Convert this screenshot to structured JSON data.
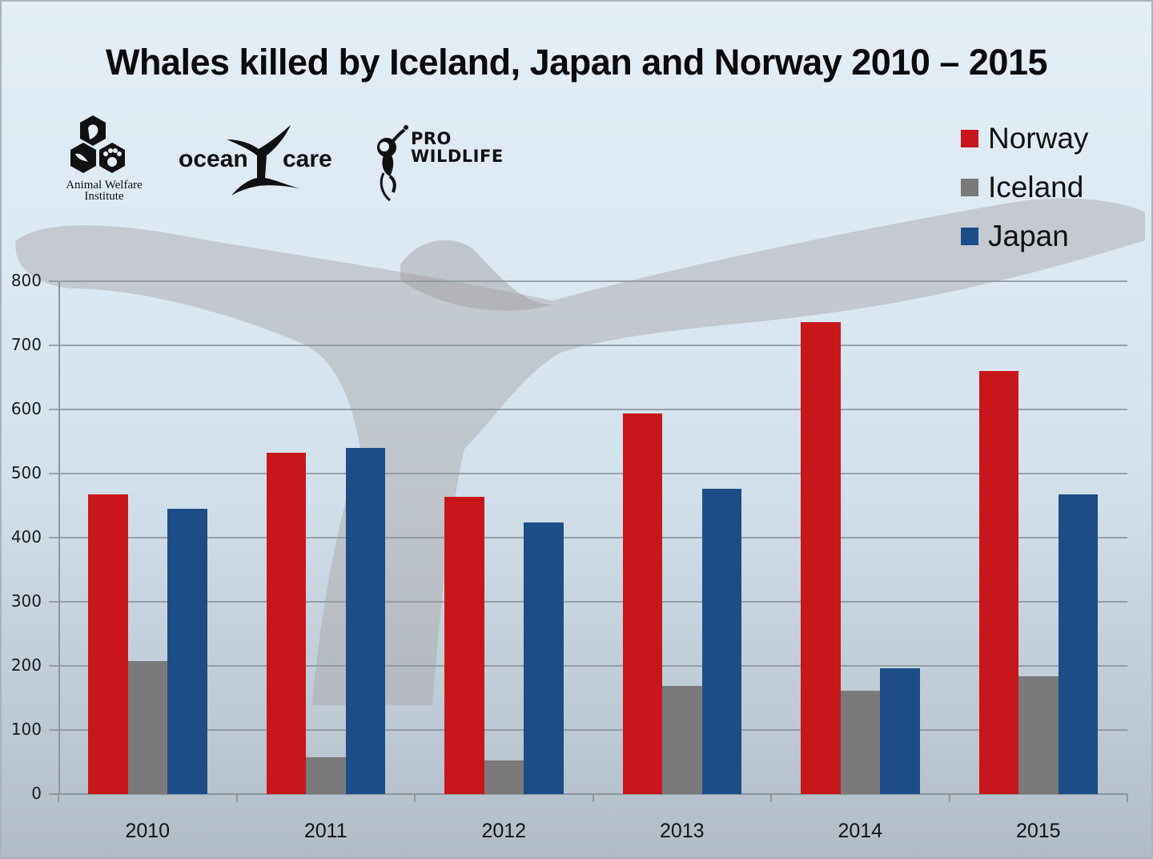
{
  "title": "Whales killed by Iceland, Japan and Norway 2010 – 2015",
  "logos": {
    "awi": {
      "caption_line1": "Animal Welfare",
      "caption_line2": "Institute"
    },
    "oceancare": {
      "left_word": "ocean",
      "right_word": "care"
    },
    "prowildlife": {
      "line1": "PRO",
      "line2": "WILDLIFE"
    }
  },
  "legend": [
    {
      "label": "Norway",
      "color": "#c8171a"
    },
    {
      "label": "Iceland",
      "color": "#7a7a7a"
    },
    {
      "label": "Japan",
      "color": "#1d4d86"
    }
  ],
  "colors": {
    "norway": "#c8171a",
    "iceland": "#7a7a7a",
    "japan": "#1d4d86",
    "gridline": "#8e979e"
  },
  "axis": {
    "y_ticks": [
      "0",
      "100",
      "200",
      "300",
      "400",
      "500",
      "600",
      "700",
      "800"
    ],
    "x_ticks": [
      "2010",
      "2011",
      "2012",
      "2013",
      "2014",
      "2015"
    ]
  },
  "chart_data": {
    "type": "bar",
    "title": "Whales killed by Iceland, Japan and Norway 2010 – 2015",
    "xlabel": "",
    "ylabel": "",
    "categories": [
      "2010",
      "2011",
      "2012",
      "2013",
      "2014",
      "2015"
    ],
    "series": [
      {
        "name": "Norway",
        "color": "#c8171a",
        "values": [
          468,
          533,
          464,
          594,
          736,
          660
        ]
      },
      {
        "name": "Iceland",
        "color": "#7a7a7a",
        "values": [
          208,
          58,
          52,
          169,
          161,
          184
        ]
      },
      {
        "name": "Japan",
        "color": "#1d4d86",
        "values": [
          445,
          540,
          424,
          476,
          196,
          467
        ]
      }
    ],
    "ylim": [
      0,
      800
    ],
    "y_tick_step": 100,
    "grid": true,
    "legend_position": "top-right"
  }
}
